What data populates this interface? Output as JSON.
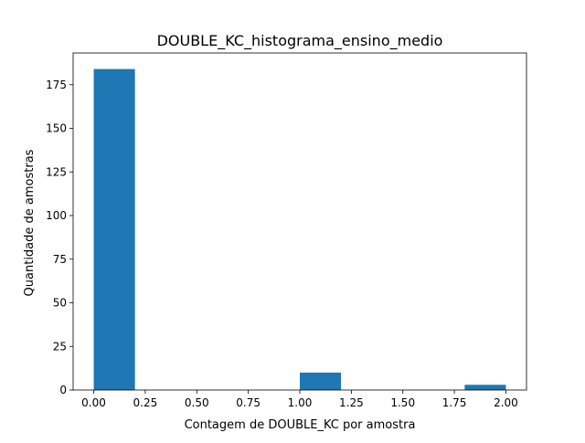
{
  "chart_data": {
    "type": "bar",
    "title": "DOUBLE_KC_histograma_ensino_medio",
    "xlabel": "Contagem de DOUBLE_KC por amostra",
    "ylabel": "Quantidade de amostras",
    "xlim": [
      -0.1,
      2.1
    ],
    "ylim": [
      0,
      193.2
    ],
    "bar_color": "#1f77b4",
    "bins": [
      {
        "x0": 0.0,
        "x1": 0.2,
        "value": 184
      },
      {
        "x0": 0.2,
        "x1": 0.4,
        "value": 0
      },
      {
        "x0": 0.4,
        "x1": 0.6,
        "value": 0
      },
      {
        "x0": 0.6,
        "x1": 0.8,
        "value": 0
      },
      {
        "x0": 0.8,
        "x1": 1.0,
        "value": 0
      },
      {
        "x0": 1.0,
        "x1": 1.2,
        "value": 10
      },
      {
        "x0": 1.2,
        "x1": 1.4,
        "value": 0
      },
      {
        "x0": 1.4,
        "x1": 1.6,
        "value": 0
      },
      {
        "x0": 1.6,
        "x1": 1.8,
        "value": 0
      },
      {
        "x0": 1.8,
        "x1": 2.0,
        "value": 3
      }
    ],
    "xticks": [
      0.0,
      0.25,
      0.5,
      0.75,
      1.0,
      1.25,
      1.5,
      1.75,
      2.0
    ],
    "xtick_labels": [
      "0.00",
      "0.25",
      "0.50",
      "0.75",
      "1.00",
      "1.25",
      "1.50",
      "1.75",
      "2.00"
    ],
    "yticks": [
      0,
      25,
      50,
      75,
      100,
      125,
      150,
      175
    ],
    "ytick_labels": [
      "0",
      "25",
      "50",
      "75",
      "100",
      "125",
      "150",
      "175"
    ],
    "grid": false,
    "legend": false
  }
}
